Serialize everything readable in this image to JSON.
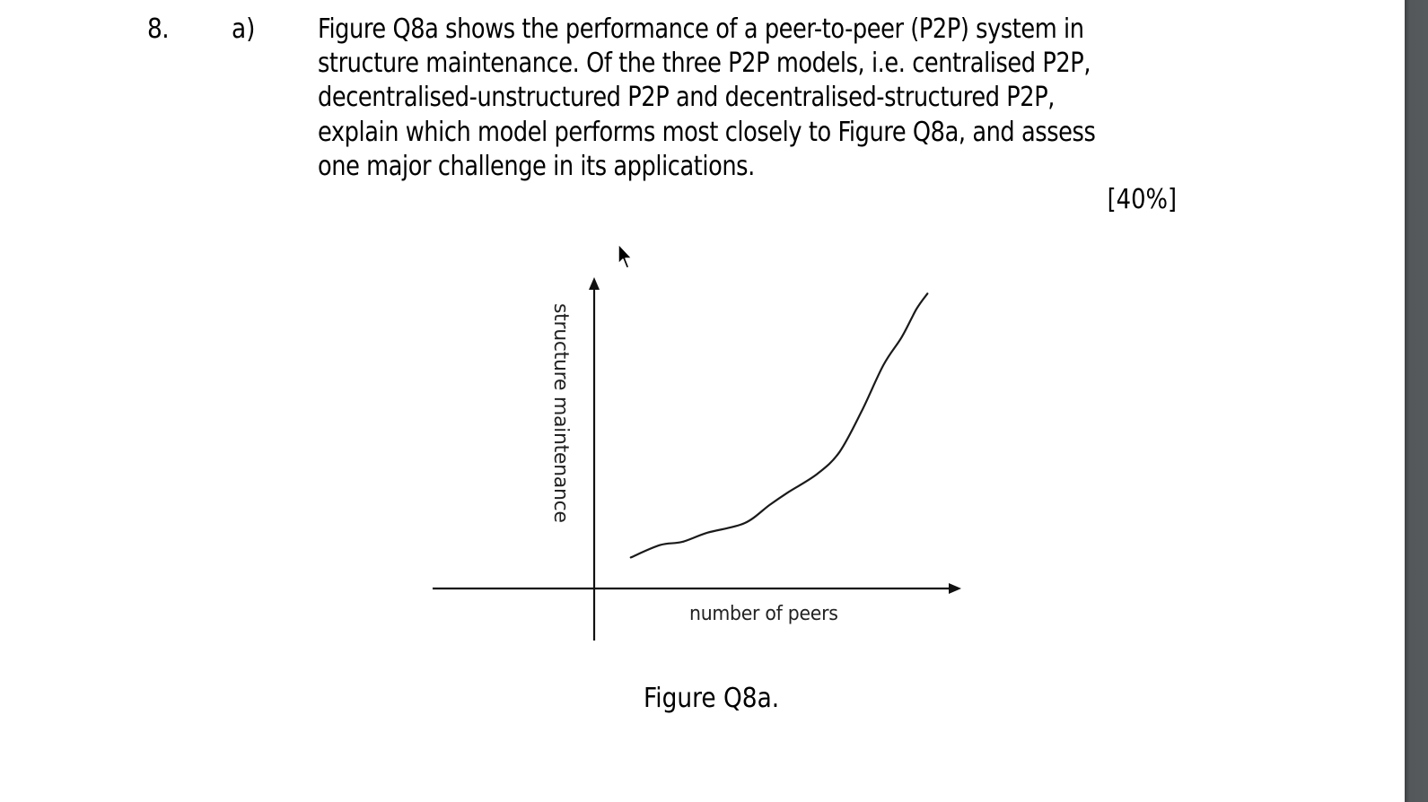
{
  "question": {
    "number": "8.",
    "part": "a)",
    "lines": [
      "Figure Q8a shows the performance of a peer-to-peer (P2P) system in",
      "structure maintenance. Of the three P2P models, i.e. centralised P2P,",
      "decentralised-unstructured P2P and decentralised-structured P2P,",
      "explain which model performs most closely to Figure Q8a, and assess",
      "one major challenge in its applications."
    ],
    "marks": "[40%]"
  },
  "figure": {
    "caption": "Figure Q8a.",
    "y_axis_label": "structure maintenance",
    "x_axis_label": "number of peers"
  },
  "chart_data": {
    "type": "line",
    "title": "Figure Q8a.",
    "xlabel": "number of peers",
    "ylabel": "structure maintenance",
    "axis_ticks": "none (qualitative sketch, arbitrary units)",
    "grid": false,
    "legend": null,
    "xlim": [
      0,
      10
    ],
    "ylim": [
      0,
      10
    ],
    "series": [
      {
        "name": "structure maintenance vs number of peers",
        "shape": "superlinear / exponential-like growth",
        "x": [
          1.0,
          1.8,
          2.4,
          3.1,
          4.1,
          4.8,
          5.3,
          6.1,
          6.7,
          7.3,
          7.9,
          8.4,
          8.8,
          9.1
        ],
        "y": [
          1.0,
          1.4,
          1.5,
          1.8,
          2.1,
          2.7,
          3.1,
          3.7,
          4.4,
          5.7,
          7.2,
          8.1,
          9.0,
          9.5
        ]
      }
    ],
    "colors": {
      "line": "#1a1a1a",
      "axes": "#111111"
    }
  },
  "ui": {
    "viewer_gutter_color": "#54585b",
    "page_background": "#ffffff"
  }
}
